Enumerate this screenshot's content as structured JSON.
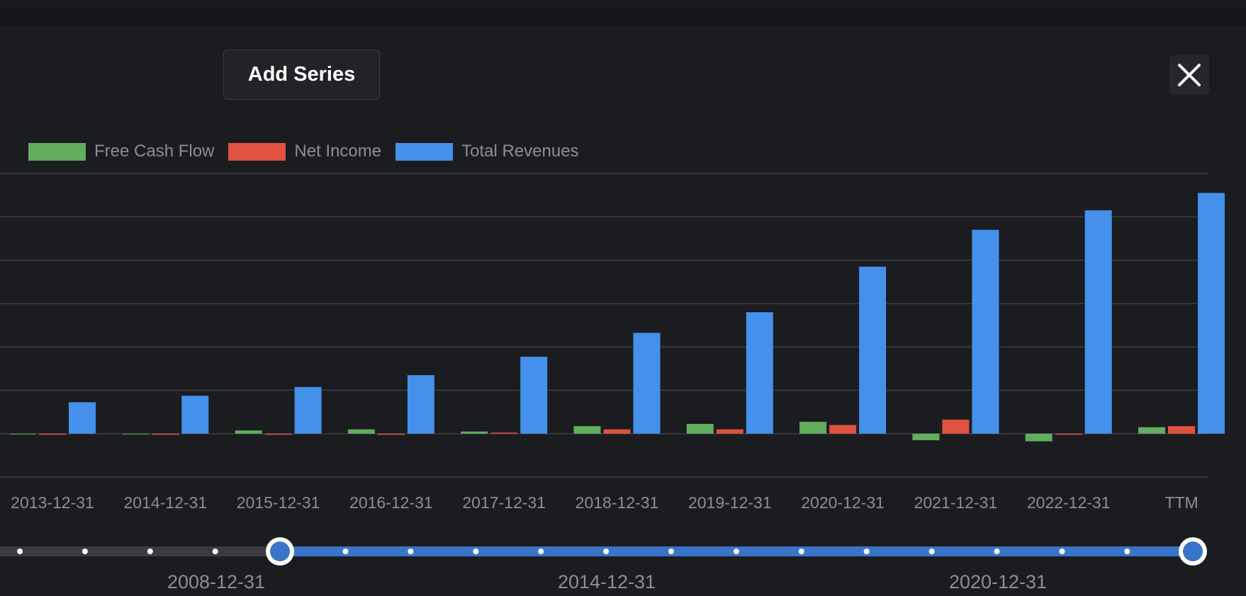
{
  "toolbar": {
    "add_series_label": "Add Series",
    "close_icon": "close-icon"
  },
  "colors": {
    "free_cash_flow": "#63ad5e",
    "net_income": "#e05241",
    "total_revenues": "#4590eb",
    "slider_active": "#3a74c9"
  },
  "chart_data": {
    "type": "bar",
    "categories": [
      "2013-12-31",
      "2014-12-31",
      "2015-12-31",
      "2016-12-31",
      "2017-12-31",
      "2018-12-31",
      "2019-12-31",
      "2020-12-31",
      "2021-12-31",
      "2022-12-31",
      "TTM"
    ],
    "series": [
      {
        "name": "Free Cash Flow",
        "values": [
          0,
          0,
          0.15,
          0.2,
          0.1,
          0.35,
          0.45,
          0.55,
          -0.3,
          -0.35,
          0.3
        ]
      },
      {
        "name": "Net Income",
        "values": [
          -0.05,
          -0.05,
          -0.05,
          -0.05,
          0.05,
          0.2,
          0.2,
          0.4,
          0.65,
          -0.05,
          0.35
        ]
      },
      {
        "name": "Total Revenues",
        "values": [
          1.45,
          1.75,
          2.15,
          2.7,
          3.55,
          4.65,
          5.6,
          7.7,
          9.4,
          10.3,
          11.1
        ]
      }
    ],
    "ylim": [
      -2,
      12
    ],
    "grid": true,
    "legend_position": "top-left",
    "xlabel": "",
    "ylabel": ""
  },
  "range_slider": {
    "labels": [
      "2008-12-31",
      "2014-12-31",
      "2020-12-31"
    ],
    "start_value": "2009-12-31",
    "end_value": "TTM"
  }
}
